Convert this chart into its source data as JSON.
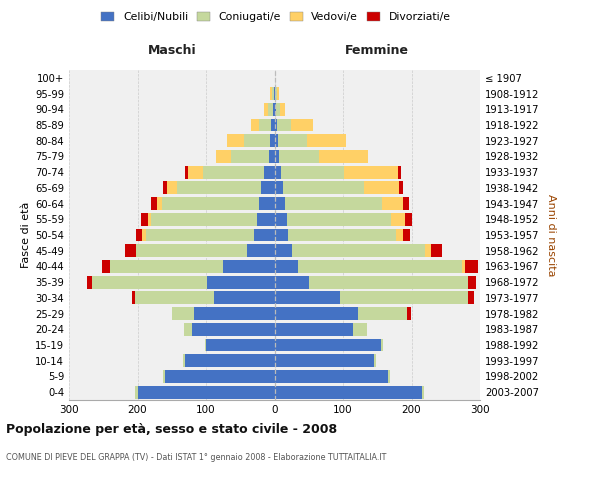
{
  "age_groups": [
    "0-4",
    "5-9",
    "10-14",
    "15-19",
    "20-24",
    "25-29",
    "30-34",
    "35-39",
    "40-44",
    "45-49",
    "50-54",
    "55-59",
    "60-64",
    "65-69",
    "70-74",
    "75-79",
    "80-84",
    "85-89",
    "90-94",
    "95-99",
    "100+"
  ],
  "birth_years": [
    "2003-2007",
    "1998-2002",
    "1993-1997",
    "1988-1992",
    "1983-1987",
    "1978-1982",
    "1973-1977",
    "1968-1972",
    "1963-1967",
    "1958-1962",
    "1953-1957",
    "1948-1952",
    "1943-1947",
    "1938-1942",
    "1933-1937",
    "1928-1932",
    "1923-1927",
    "1918-1922",
    "1913-1917",
    "1908-1912",
    "≤ 1907"
  ],
  "male": {
    "celibi": [
      200,
      160,
      130,
      100,
      120,
      118,
      88,
      98,
      75,
      40,
      30,
      25,
      22,
      20,
      15,
      8,
      6,
      5,
      2,
      1,
      0
    ],
    "coniugati": [
      3,
      3,
      3,
      2,
      12,
      32,
      115,
      168,
      165,
      162,
      158,
      155,
      142,
      122,
      90,
      55,
      38,
      18,
      8,
      3,
      0
    ],
    "vedovi": [
      0,
      0,
      0,
      0,
      0,
      0,
      0,
      0,
      0,
      0,
      5,
      5,
      8,
      15,
      22,
      22,
      25,
      12,
      5,
      2,
      0
    ],
    "divorziati": [
      0,
      0,
      0,
      0,
      0,
      0,
      5,
      8,
      12,
      16,
      9,
      10,
      9,
      6,
      4,
      0,
      0,
      0,
      0,
      0,
      0
    ]
  },
  "female": {
    "nubili": [
      215,
      165,
      145,
      155,
      115,
      122,
      95,
      50,
      35,
      25,
      20,
      18,
      15,
      12,
      10,
      7,
      5,
      4,
      2,
      1,
      0
    ],
    "coniugate": [
      3,
      3,
      3,
      3,
      20,
      72,
      188,
      232,
      238,
      195,
      158,
      152,
      142,
      118,
      92,
      58,
      42,
      20,
      6,
      2,
      0
    ],
    "vedove": [
      0,
      0,
      0,
      0,
      0,
      0,
      0,
      0,
      5,
      8,
      10,
      20,
      30,
      52,
      78,
      72,
      58,
      32,
      8,
      3,
      0
    ],
    "divorziate": [
      0,
      0,
      0,
      0,
      0,
      5,
      8,
      12,
      19,
      16,
      10,
      10,
      9,
      6,
      4,
      0,
      0,
      0,
      0,
      0,
      0
    ]
  },
  "colors": {
    "celibi": "#4472C4",
    "coniugati": "#C5D89D",
    "vedovi": "#FFD066",
    "divorziati": "#CC0000"
  },
  "xlim": 300,
  "title": "Popolazione per età, sesso e stato civile - 2008",
  "subtitle": "COMUNE DI PIEVE DEL GRAPPA (TV) - Dati ISTAT 1° gennaio 2008 - Elaborazione TUTTAITALIA.IT",
  "ylabel_left": "Fasce di età",
  "ylabel_right": "Anni di nascita",
  "label_maschi": "Maschi",
  "label_femmine": "Femmine",
  "legend_labels": [
    "Celibi/Nubili",
    "Coniugati/e",
    "Vedovi/e",
    "Divorziati/e"
  ],
  "bg_color": "#FFFFFF",
  "plot_bg_color": "#F0F0F0"
}
